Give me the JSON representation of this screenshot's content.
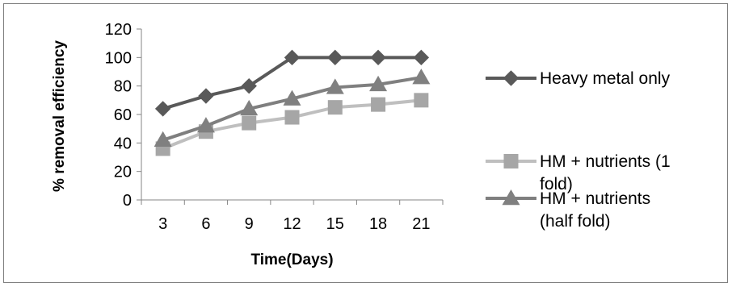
{
  "chart_data": {
    "type": "line",
    "title": "",
    "xlabel": "Time(Days)",
    "ylabel": "% removal efficiency",
    "categories": [
      "3",
      "6",
      "9",
      "12",
      "15",
      "18",
      "21"
    ],
    "ylim": [
      0,
      120
    ],
    "yticks": [
      "0",
      "20",
      "40",
      "60",
      "80",
      "100",
      "120"
    ],
    "grid": false,
    "legend_position": "right",
    "series": [
      {
        "name": "Heavy metal only",
        "legend_lines": [
          "Heavy metal only"
        ],
        "marker": "diamond",
        "color": "#595959",
        "marker_color": "#595959",
        "values": [
          64,
          73,
          80,
          100,
          100,
          100,
          100
        ]
      },
      {
        "name": "HM + nutrients (1 fold)",
        "legend_lines": [
          "HM + nutrients (1",
          "fold)"
        ],
        "marker": "square",
        "color": "#bfbfbf",
        "marker_color": "#a6a6a6",
        "values": [
          36,
          48,
          54,
          58,
          65,
          67,
          70
        ]
      },
      {
        "name": "HM + nutrients (half fold)",
        "legend_lines": [
          "HM + nutrients",
          "(half fold)"
        ],
        "marker": "triangle",
        "color": "#7f7f7f",
        "marker_color": "#808080",
        "values": [
          42,
          52,
          64,
          71,
          79,
          81,
          86
        ]
      }
    ]
  }
}
